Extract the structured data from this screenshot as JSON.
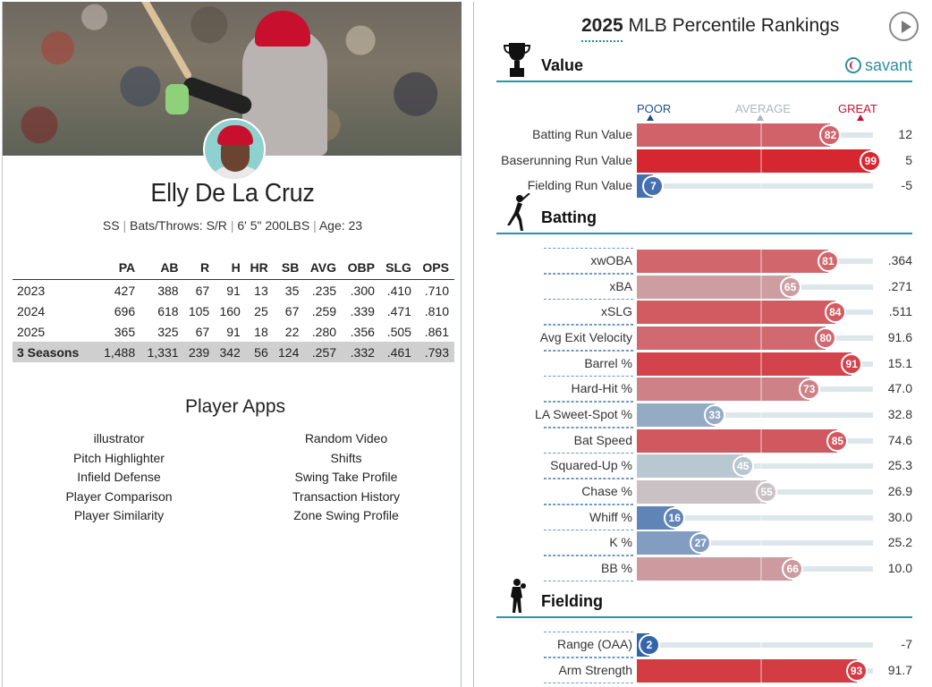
{
  "player": {
    "name": "Elly De La Cruz",
    "position": "SS",
    "bats_throws": "Bats/Throws: S/R",
    "height_weight": "6' 5\" 200LBS",
    "age": "Age: 23"
  },
  "career": {
    "headers": [
      "",
      "PA",
      "AB",
      "R",
      "H",
      "HR",
      "SB",
      "AVG",
      "OBP",
      "SLG",
      "OPS"
    ],
    "rows": [
      [
        "2023",
        "427",
        "388",
        "67",
        "91",
        "13",
        "35",
        ".235",
        ".300",
        ".410",
        ".710"
      ],
      [
        "2024",
        "696",
        "618",
        "105",
        "160",
        "25",
        "67",
        ".259",
        ".339",
        ".471",
        ".810"
      ],
      [
        "2025",
        "365",
        "325",
        "67",
        "91",
        "18",
        "22",
        ".280",
        ".356",
        ".505",
        ".861"
      ]
    ],
    "total": [
      "3 Seasons",
      "1,488",
      "1,331",
      "239",
      "342",
      "56",
      "124",
      ".257",
      ".332",
      ".461",
      ".793"
    ]
  },
  "apps": {
    "title": "Player Apps",
    "left": [
      "illustrator",
      "Pitch Highlighter",
      "Infield Defense",
      "Player Comparison",
      "Player Similarity"
    ],
    "right": [
      "Random Video",
      "Shifts",
      "Swing Take Profile",
      "Transaction History",
      "Zone Swing Profile"
    ]
  },
  "rankings": {
    "year": "2025",
    "title_rest": " MLB Percentile Rankings",
    "brand": "savant",
    "scale": {
      "poor": "POOR",
      "average": "AVERAGE",
      "great": "GREAT"
    },
    "sections": [
      {
        "title": "Value",
        "icon": "trophy-icon",
        "stats": [
          {
            "name": "Batting Run Value",
            "pct": 82,
            "value": "12"
          },
          {
            "name": "Baserunning Run Value",
            "pct": 99,
            "value": "5"
          },
          {
            "name": "Fielding Run Value",
            "pct": 7,
            "value": "-5"
          }
        ]
      },
      {
        "title": "Batting",
        "icon": "batter-icon",
        "stats": [
          {
            "name": "xwOBA",
            "pct": 81,
            "value": ".364"
          },
          {
            "name": "xBA",
            "pct": 65,
            "value": ".271"
          },
          {
            "name": "xSLG",
            "pct": 84,
            "value": ".511"
          },
          {
            "name": "Avg Exit Velocity",
            "pct": 80,
            "value": "91.6"
          },
          {
            "name": "Barrel %",
            "pct": 91,
            "value": "15.1"
          },
          {
            "name": "Hard-Hit %",
            "pct": 73,
            "value": "47.0"
          },
          {
            "name": "LA Sweet-Spot %",
            "pct": 33,
            "value": "32.8"
          },
          {
            "name": "Bat Speed",
            "pct": 85,
            "value": "74.6"
          },
          {
            "name": "Squared-Up %",
            "pct": 45,
            "value": "25.3"
          },
          {
            "name": "Chase %",
            "pct": 55,
            "value": "26.9"
          },
          {
            "name": "Whiff %",
            "pct": 16,
            "value": "30.0"
          },
          {
            "name": "K %",
            "pct": 27,
            "value": "25.2"
          },
          {
            "name": "BB %",
            "pct": 66,
            "value": "10.0"
          }
        ]
      },
      {
        "title": "Fielding",
        "icon": "fielder-icon",
        "stats": [
          {
            "name": "Range (OAA)",
            "pct": 2,
            "value": "-7"
          },
          {
            "name": "Arm Strength",
            "pct": 93,
            "value": "91.7"
          }
        ]
      }
    ]
  }
}
